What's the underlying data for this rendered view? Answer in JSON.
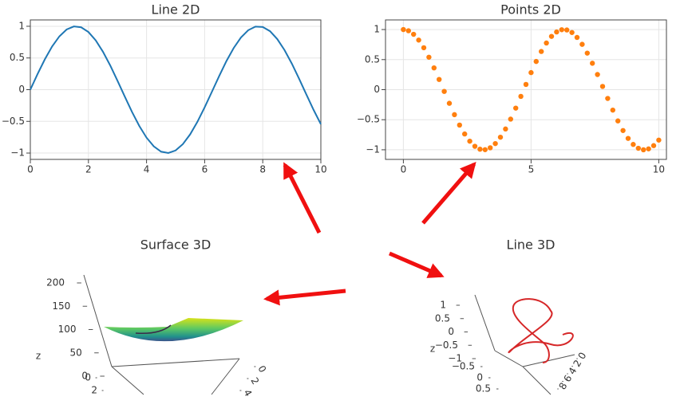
{
  "chart_data": [
    {
      "type": "line",
      "title": "Line 2D",
      "color": "#1f77b4",
      "grid": true,
      "x": [
        0,
        0.25,
        0.5,
        0.75,
        1,
        1.25,
        1.5,
        1.75,
        2,
        2.25,
        2.5,
        2.75,
        3,
        3.25,
        3.5,
        3.75,
        4,
        4.25,
        4.5,
        4.75,
        5,
        5.25,
        5.5,
        5.75,
        6,
        6.25,
        6.5,
        6.75,
        7,
        7.25,
        7.5,
        7.75,
        8,
        8.25,
        8.5,
        8.75,
        9,
        9.25,
        9.5,
        9.75,
        10
      ],
      "values": [
        0,
        0.247,
        0.479,
        0.682,
        0.841,
        0.949,
        0.997,
        0.984,
        0.909,
        0.778,
        0.598,
        0.382,
        0.141,
        -0.108,
        -0.351,
        -0.572,
        -0.757,
        -0.895,
        -0.978,
        -0.999,
        -0.959,
        -0.859,
        -0.706,
        -0.508,
        -0.279,
        -0.033,
        0.215,
        0.451,
        0.657,
        0.823,
        0.938,
        0.995,
        0.989,
        0.923,
        0.798,
        0.624,
        0.412,
        0.174,
        -0.075,
        -0.319,
        -0.544
      ],
      "xlim": [
        0,
        10
      ],
      "xticks": [
        0,
        2,
        4,
        6,
        8,
        10
      ],
      "ylim": [
        -1.1,
        1.1
      ],
      "yticks": [
        {
          "value": -1,
          "label": "−1"
        },
        {
          "value": -0.5,
          "label": "−0.5"
        },
        0,
        0.5,
        1
      ]
    },
    {
      "type": "scatter",
      "title": "Points 2D",
      "color": "#ff7f0e",
      "grid": true,
      "x": [
        0,
        0.2,
        0.4,
        0.6,
        0.8,
        1,
        1.2,
        1.4,
        1.6,
        1.8,
        2,
        2.2,
        2.4,
        2.6,
        2.8,
        3,
        3.2,
        3.4,
        3.6,
        3.8,
        4,
        4.2,
        4.4,
        4.6,
        4.8,
        5,
        5.2,
        5.4,
        5.6,
        5.8,
        6,
        6.2,
        6.4,
        6.6,
        6.8,
        7,
        7.2,
        7.4,
        7.6,
        7.8,
        8,
        8.2,
        8.4,
        8.6,
        8.8,
        9,
        9.2,
        9.4,
        9.6,
        9.8,
        10
      ],
      "values": [
        1,
        0.98,
        0.921,
        0.825,
        0.697,
        0.54,
        0.362,
        0.17,
        -0.029,
        -0.227,
        -0.416,
        -0.589,
        -0.737,
        -0.857,
        -0.942,
        -0.99,
        -0.998,
        -0.967,
        -0.897,
        -0.791,
        -0.654,
        -0.49,
        -0.307,
        -0.112,
        0.087,
        0.284,
        0.469,
        0.635,
        0.776,
        0.886,
        0.96,
        0.997,
        0.993,
        0.951,
        0.869,
        0.754,
        0.608,
        0.439,
        0.252,
        0.054,
        -0.146,
        -0.34,
        -0.52,
        -0.68,
        -0.811,
        -0.911,
        -0.975,
        -1,
        -0.985,
        -0.931,
        -0.839
      ],
      "xlim": [
        -0.7,
        10.3
      ],
      "xticks": [
        0,
        5,
        10
      ],
      "ylim": [
        -1.16,
        1.16
      ],
      "yticks": [
        {
          "value": -1,
          "label": "−1"
        },
        {
          "value": -0.5,
          "label": "−0.5"
        },
        0,
        0.5,
        1
      ]
    },
    {
      "type": "surface",
      "title": "Surface 3D",
      "zlabel": "z",
      "zlim": [
        0,
        200
      ],
      "zticks": [
        0,
        50,
        100,
        150,
        200
      ],
      "ylim": [
        0,
        2
      ],
      "yticks": [
        0,
        2
      ],
      "xlim": [
        0,
        4
      ],
      "xticks": [
        0,
        2,
        4
      ]
    },
    {
      "type": "line3d",
      "title": "Line 3D",
      "zlabel": "z",
      "color": "#d62728",
      "zlim": [
        -1,
        1
      ],
      "zticks": [
        {
          "value": -1,
          "label": "−1"
        },
        {
          "value": -0.5,
          "label": "−0.5"
        },
        0,
        0.5,
        1
      ],
      "ylim": [
        -0.5,
        0.5
      ],
      "yticks": [
        {
          "value": -0.5,
          "label": "−0.5"
        },
        0,
        0.5
      ],
      "xlim": [
        0,
        8
      ],
      "xticks": [
        0,
        2,
        4,
        6,
        8
      ]
    }
  ]
}
